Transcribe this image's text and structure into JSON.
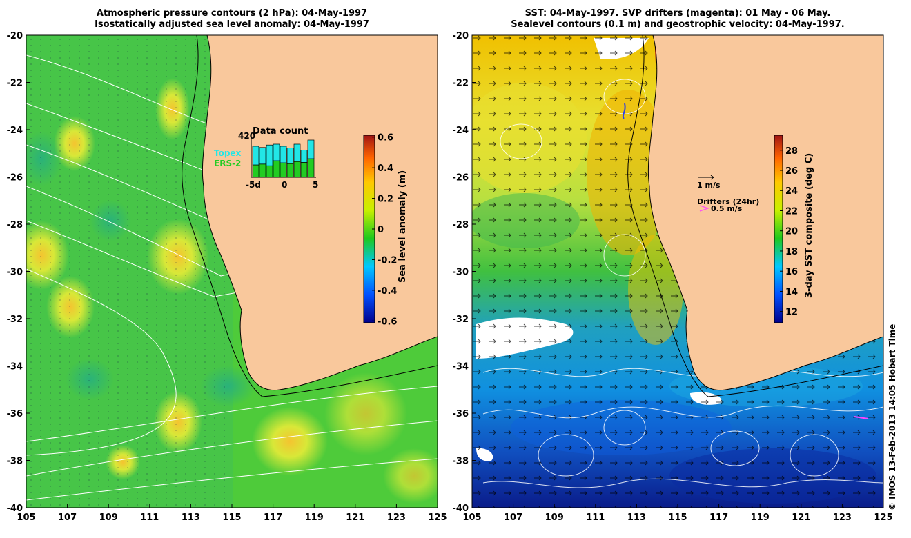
{
  "left_panel": {
    "title_line1": "Atmospheric pressure contours (2 hPa): 04-May-1997",
    "title_line2": "Isostatically adjusted sea level anomaly: 04-May-1997",
    "colorbar": {
      "label": "Sea level anomaly (m)",
      "ticks": [
        "0.6",
        "0.4",
        "0.2",
        "0",
        "-0.2",
        "-0.4",
        "-0.6"
      ],
      "colors": [
        "#00008b",
        "#0050ff",
        "#00c8ff",
        "#1ec81e",
        "#c8f000",
        "#ffc800",
        "#ff6400",
        "#a01414"
      ]
    },
    "inset": {
      "title": "Data count",
      "max_count": "420",
      "legend_topex": "Topex",
      "legend_ers2": "ERS-2",
      "xlabels": [
        "-5d",
        "0",
        "5"
      ],
      "counts_topex": [
        0.45,
        0.4,
        0.5,
        0.4,
        0.4,
        0.38,
        0.42,
        0.3,
        0.45
      ],
      "counts_ers2": [
        0.3,
        0.32,
        0.28,
        0.4,
        0.35,
        0.33,
        0.38,
        0.36,
        0.45
      ],
      "topex_color": "#22e6e6",
      "ers2_color": "#22cc22"
    }
  },
  "right_panel": {
    "title_line1": "SST: 04-May-1997. SVP drifters (magenta): 01 May - 06 May.",
    "title_line2": "Sealevel contours (0.1 m) and geostrophic velocity: 04-May-1997.",
    "colorbar": {
      "label": "3-day SST composite (deg C)",
      "ticks": [
        "28",
        "26",
        "24",
        "22",
        "20",
        "18",
        "16",
        "14",
        "12"
      ],
      "colors": [
        "#00008b",
        "#0050ff",
        "#00c8ff",
        "#1ec81e",
        "#c8f000",
        "#ffc800",
        "#ff6400",
        "#a01414"
      ]
    },
    "velocity_legend": "1 m/s",
    "drifter_legend_title": "Drifters (24hr)",
    "drifter_legend_value": "0.5 m/s",
    "drifter_color": "#ff44ff"
  },
  "axes": {
    "lat_labels": [
      "-20",
      "-22",
      "-24",
      "-26",
      "-28",
      "-30",
      "-32",
      "-34",
      "-36",
      "-38",
      "-40"
    ],
    "lon_labels": [
      "105",
      "107",
      "109",
      "111",
      "113",
      "115",
      "117",
      "119",
      "121",
      "123",
      "125"
    ]
  },
  "colors": {
    "land": "#f9c89c",
    "ocean_left": "#4ecb3a",
    "contour": "#ffffff"
  },
  "credit": "© IMOS 13-Feb-2013 14:05 Hobart Time"
}
